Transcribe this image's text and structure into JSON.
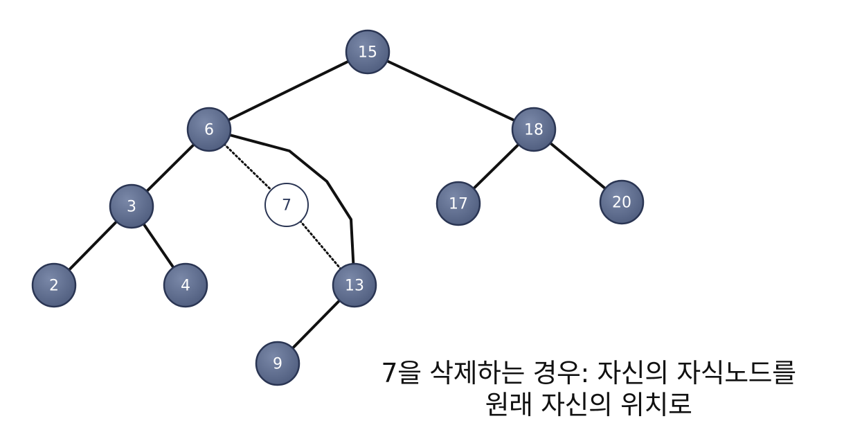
{
  "diagram": {
    "nodes": [
      {
        "id": "n15",
        "label": "15",
        "state": "normal"
      },
      {
        "id": "n6",
        "label": "6",
        "state": "normal"
      },
      {
        "id": "n18",
        "label": "18",
        "state": "normal"
      },
      {
        "id": "n3",
        "label": "3",
        "state": "normal"
      },
      {
        "id": "n7",
        "label": "7",
        "state": "removed"
      },
      {
        "id": "n17",
        "label": "17",
        "state": "normal"
      },
      {
        "id": "n20",
        "label": "20",
        "state": "normal"
      },
      {
        "id": "n2",
        "label": "2",
        "state": "normal"
      },
      {
        "id": "n4",
        "label": "4",
        "state": "normal"
      },
      {
        "id": "n13",
        "label": "13",
        "state": "normal"
      },
      {
        "id": "n9",
        "label": "9",
        "state": "normal"
      }
    ],
    "edges": [
      {
        "from": "n15",
        "to": "n6",
        "style": "solid"
      },
      {
        "from": "n15",
        "to": "n18",
        "style": "solid"
      },
      {
        "from": "n6",
        "to": "n3",
        "style": "solid"
      },
      {
        "from": "n3",
        "to": "n2",
        "style": "solid"
      },
      {
        "from": "n3",
        "to": "n4",
        "style": "solid"
      },
      {
        "from": "n18",
        "to": "n17",
        "style": "solid"
      },
      {
        "from": "n18",
        "to": "n20",
        "style": "solid"
      },
      {
        "from": "n13",
        "to": "n9",
        "style": "solid"
      },
      {
        "from": "n6",
        "to": "n7",
        "style": "dotted"
      },
      {
        "from": "n7",
        "to": "n13",
        "style": "dotted"
      },
      {
        "from": "n6",
        "to": "n13",
        "style": "curved"
      }
    ],
    "colors": {
      "node_fill": "#5d6b8b",
      "node_stroke": "#2a3553",
      "removed_fill": "#ffffff",
      "edge": "#111111"
    }
  },
  "caption": {
    "line1": "7을 삭제하는 경우: 자신의 자식노드를",
    "line2": "원래 자신의 위치로"
  }
}
